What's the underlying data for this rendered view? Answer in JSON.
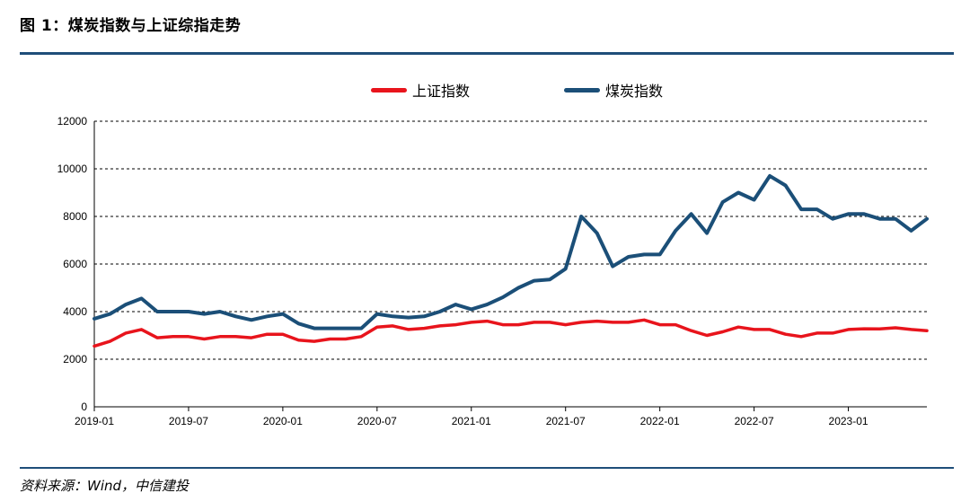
{
  "header": {
    "title": "图 1：煤炭指数与上证综指走势"
  },
  "footer": {
    "source": "资料来源：Wind，中信建投"
  },
  "colors": {
    "rule": "#1f4e79",
    "sse": "#e8141c",
    "coal": "#1b4f78"
  },
  "chart_data": {
    "type": "line",
    "title": "",
    "xlabel": "",
    "ylabel": "",
    "ylim": [
      0,
      12000
    ],
    "yticks": [
      0,
      2000,
      4000,
      6000,
      8000,
      10000,
      12000
    ],
    "xticks": [
      "2019-01",
      "2019-07",
      "2020-01",
      "2020-07",
      "2021-01",
      "2021-07",
      "2022-01",
      "2022-07",
      "2023-01"
    ],
    "x_range": [
      "2019-01",
      "2023-06"
    ],
    "grid": "horizontal dashed",
    "legend_position": "top",
    "series": [
      {
        "name": "上证指数",
        "color": "#e8141c",
        "points": [
          [
            "2019-01",
            2550
          ],
          [
            "2019-02",
            2750
          ],
          [
            "2019-03",
            3100
          ],
          [
            "2019-04",
            3250
          ],
          [
            "2019-05",
            2900
          ],
          [
            "2019-06",
            2950
          ],
          [
            "2019-07",
            2950
          ],
          [
            "2019-08",
            2850
          ],
          [
            "2019-09",
            2950
          ],
          [
            "2019-10",
            2950
          ],
          [
            "2019-11",
            2900
          ],
          [
            "2019-12",
            3050
          ],
          [
            "2020-01",
            3050
          ],
          [
            "2020-02",
            2800
          ],
          [
            "2020-03",
            2750
          ],
          [
            "2020-04",
            2850
          ],
          [
            "2020-05",
            2850
          ],
          [
            "2020-06",
            2950
          ],
          [
            "2020-07",
            3350
          ],
          [
            "2020-08",
            3400
          ],
          [
            "2020-09",
            3250
          ],
          [
            "2020-10",
            3300
          ],
          [
            "2020-11",
            3400
          ],
          [
            "2020-12",
            3450
          ],
          [
            "2021-01",
            3550
          ],
          [
            "2021-02",
            3600
          ],
          [
            "2021-03",
            3450
          ],
          [
            "2021-04",
            3450
          ],
          [
            "2021-05",
            3550
          ],
          [
            "2021-06",
            3550
          ],
          [
            "2021-07",
            3450
          ],
          [
            "2021-08",
            3550
          ],
          [
            "2021-09",
            3600
          ],
          [
            "2021-10",
            3550
          ],
          [
            "2021-11",
            3550
          ],
          [
            "2021-12",
            3650
          ],
          [
            "2022-01",
            3450
          ],
          [
            "2022-02",
            3450
          ],
          [
            "2022-03",
            3200
          ],
          [
            "2022-04",
            3000
          ],
          [
            "2022-05",
            3150
          ],
          [
            "2022-06",
            3350
          ],
          [
            "2022-07",
            3250
          ],
          [
            "2022-08",
            3250
          ],
          [
            "2022-09",
            3050
          ],
          [
            "2022-10",
            2950
          ],
          [
            "2022-11",
            3100
          ],
          [
            "2022-12",
            3100
          ],
          [
            "2023-01",
            3250
          ],
          [
            "2023-02",
            3280
          ],
          [
            "2023-03",
            3270
          ],
          [
            "2023-04",
            3320
          ],
          [
            "2023-05",
            3250
          ],
          [
            "2023-06",
            3200
          ]
        ]
      },
      {
        "name": "煤炭指数",
        "color": "#1b4f78",
        "points": [
          [
            "2019-01",
            3700
          ],
          [
            "2019-02",
            3900
          ],
          [
            "2019-03",
            4300
          ],
          [
            "2019-04",
            4550
          ],
          [
            "2019-05",
            4000
          ],
          [
            "2019-06",
            4000
          ],
          [
            "2019-07",
            4000
          ],
          [
            "2019-08",
            3900
          ],
          [
            "2019-09",
            4000
          ],
          [
            "2019-10",
            3800
          ],
          [
            "2019-11",
            3650
          ],
          [
            "2019-12",
            3800
          ],
          [
            "2020-01",
            3900
          ],
          [
            "2020-02",
            3500
          ],
          [
            "2020-03",
            3300
          ],
          [
            "2020-04",
            3300
          ],
          [
            "2020-05",
            3300
          ],
          [
            "2020-06",
            3300
          ],
          [
            "2020-07",
            3900
          ],
          [
            "2020-08",
            3800
          ],
          [
            "2020-09",
            3750
          ],
          [
            "2020-10",
            3800
          ],
          [
            "2020-11",
            4000
          ],
          [
            "2020-12",
            4300
          ],
          [
            "2021-01",
            4100
          ],
          [
            "2021-02",
            4300
          ],
          [
            "2021-03",
            4600
          ],
          [
            "2021-04",
            5000
          ],
          [
            "2021-05",
            5300
          ],
          [
            "2021-06",
            5350
          ],
          [
            "2021-07",
            5800
          ],
          [
            "2021-08",
            8000
          ],
          [
            "2021-09",
            7300
          ],
          [
            "2021-10",
            5900
          ],
          [
            "2021-11",
            6300
          ],
          [
            "2021-12",
            6400
          ],
          [
            "2022-01",
            6400
          ],
          [
            "2022-02",
            7400
          ],
          [
            "2022-03",
            8100
          ],
          [
            "2022-04",
            7300
          ],
          [
            "2022-05",
            8600
          ],
          [
            "2022-06",
            9000
          ],
          [
            "2022-07",
            8700
          ],
          [
            "2022-08",
            9700
          ],
          [
            "2022-09",
            9300
          ],
          [
            "2022-10",
            8300
          ],
          [
            "2022-11",
            8300
          ],
          [
            "2022-12",
            7900
          ],
          [
            "2023-01",
            8100
          ],
          [
            "2023-02",
            8100
          ],
          [
            "2023-03",
            7900
          ],
          [
            "2023-04",
            7900
          ],
          [
            "2023-05",
            7400
          ],
          [
            "2023-06",
            7900
          ]
        ]
      }
    ]
  }
}
